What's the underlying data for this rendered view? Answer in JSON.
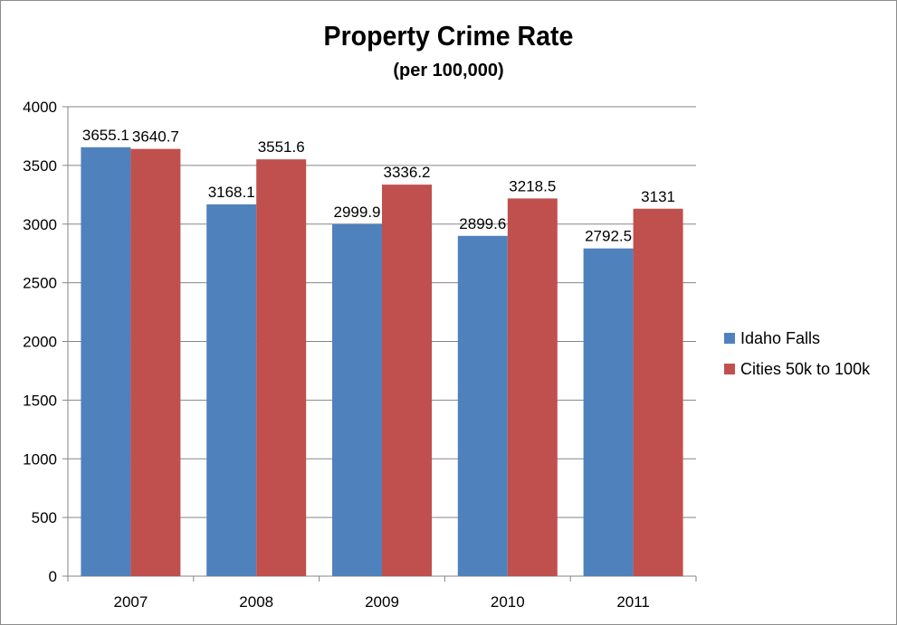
{
  "chart_data": {
    "type": "bar",
    "title": "Property Crime Rate",
    "subtitle": "(per 100,000)",
    "categories": [
      "2007",
      "2008",
      "2009",
      "2010",
      "2011"
    ],
    "series": [
      {
        "name": "Idaho Falls",
        "color": "#4f81bd",
        "values": [
          3655.1,
          3168.1,
          2999.9,
          2899.6,
          2792.5
        ],
        "labels": [
          "3655.1",
          "3168.1",
          "2999.9",
          "2899.6",
          "2792.5"
        ]
      },
      {
        "name": "Cities 50k to 100k",
        "color": "#c0504d",
        "values": [
          3640.7,
          3551.6,
          3336.2,
          3218.5,
          3131
        ],
        "labels": [
          "3640.7",
          "3551.6",
          "3336.2",
          "3218.5",
          "3131"
        ]
      }
    ],
    "ylim": [
      0,
      4000
    ],
    "yticks": [
      "0",
      "500",
      "1000",
      "1500",
      "2000",
      "2500",
      "3000",
      "3500",
      "4000"
    ],
    "grid": true,
    "legend_position": "right"
  }
}
